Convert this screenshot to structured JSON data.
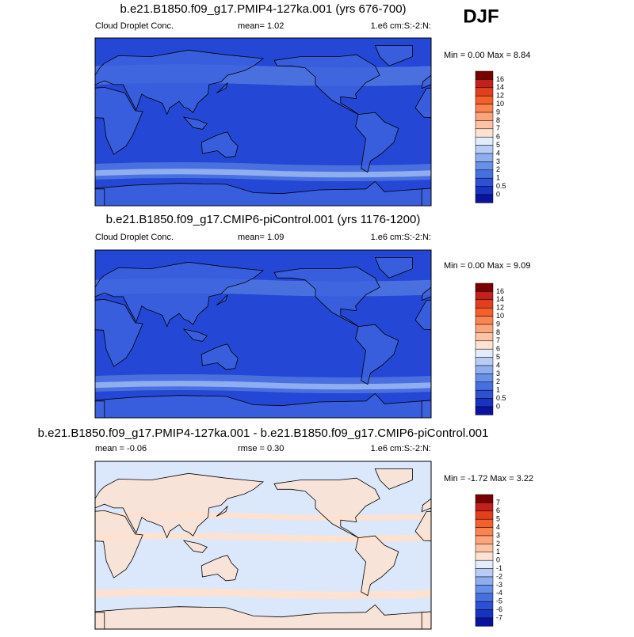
{
  "season": "DJF",
  "panels": [
    {
      "title": "b.e21.B1850.f09_g17.PMIP4-127ka.001 (yrs 676-700)",
      "left": "Cloud Droplet Conc.",
      "center": "mean=   1.02",
      "right": "1.e6 cm:S:-2:N:",
      "minmax": "Min =  0.00 Max =   8.84",
      "colorbar": [
        "16",
        "14",
        "12",
        "10",
        "9",
        "8",
        "7",
        "6",
        "5",
        "4",
        "3",
        "2",
        "1",
        "0.5",
        "0"
      ]
    },
    {
      "title": "b.e21.B1850.f09_g17.CMIP6-piControl.001 (yrs 1176-1200)",
      "left": "Cloud Droplet Conc.",
      "center": "mean=   1.09",
      "right": "1.e6 cm:S:-2:N:",
      "minmax": "Min =  0.00 Max =   9.09",
      "colorbar": [
        "16",
        "14",
        "12",
        "10",
        "9",
        "8",
        "7",
        "6",
        "5",
        "4",
        "3",
        "2",
        "1",
        "0.5",
        "0"
      ]
    },
    {
      "title": "b.e21.B1850.f09_g17.PMIP4-127ka.001 - b.e21.B1850.f09_g17.CMIP6-piControl.001",
      "left": "mean =  -0.06",
      "center": "rmse =   0.30",
      "right": "1.e6 cm:S:-2:N:",
      "minmax": "Min = -1.72 Max =   3.22",
      "colorbar": [
        "7",
        "6",
        "5",
        "4",
        "3",
        "2",
        "1",
        "0",
        "-1",
        "-2",
        "-3",
        "-4",
        "-5",
        "-6",
        "-7"
      ]
    }
  ],
  "palette": [
    "#7a0000",
    "#c1211a",
    "#e23f1c",
    "#f5602a",
    "#fa8450",
    "#fca47a",
    "#fdc3a6",
    "#fee2d2",
    "#e2ecfb",
    "#b8ccf6",
    "#8eaef0",
    "#6890e8",
    "#476fdf",
    "#2d50d4",
    "#1832c2",
    "#0a12a0"
  ]
}
